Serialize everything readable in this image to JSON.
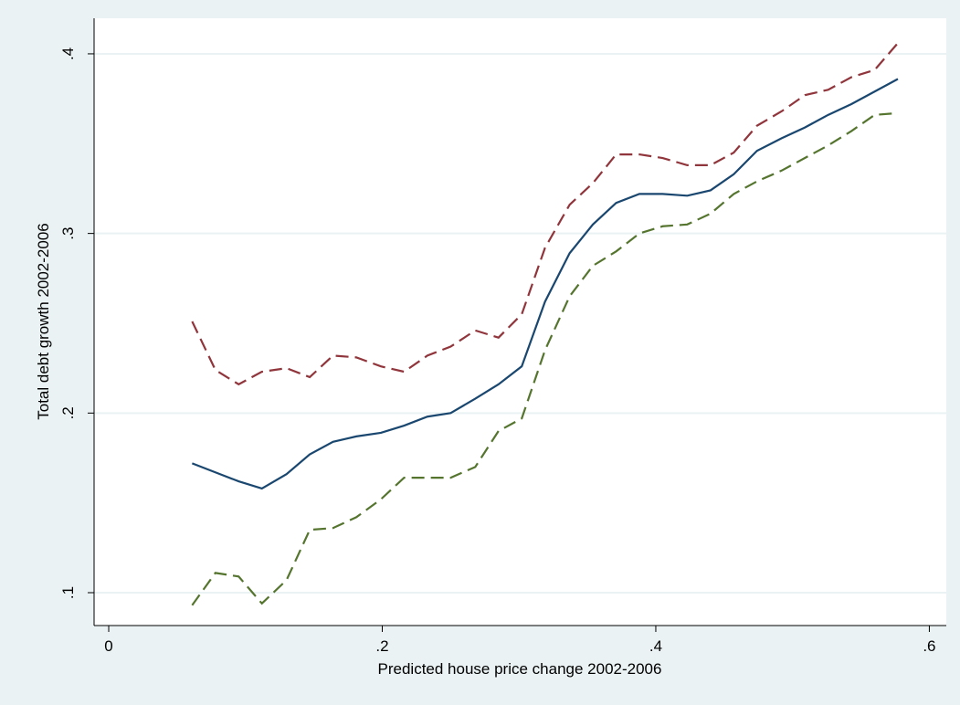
{
  "chart_data": {
    "type": "line",
    "x_label": "Predicted house price change 2002-2006",
    "y_label": "Total debt growth 2002-2006",
    "x": [
      0.061,
      0.078,
      0.095,
      0.112,
      0.13,
      0.147,
      0.164,
      0.181,
      0.199,
      0.216,
      0.233,
      0.25,
      0.268,
      0.285,
      0.302,
      0.319,
      0.337,
      0.354,
      0.371,
      0.388,
      0.405,
      0.423,
      0.44,
      0.457,
      0.474,
      0.492,
      0.509,
      0.526,
      0.543,
      0.56,
      0.577
    ],
    "series": [
      {
        "color": "#90353b",
        "dashed": true,
        "values": [
          0.251,
          0.224,
          0.216,
          0.223,
          0.225,
          0.22,
          0.232,
          0.231,
          0.226,
          0.223,
          0.232,
          0.237,
          0.246,
          0.242,
          0.255,
          0.292,
          0.316,
          0.328,
          0.344,
          0.344,
          0.342,
          0.338,
          0.338,
          0.345,
          0.36,
          0.368,
          0.377,
          0.38,
          0.387,
          0.391,
          0.406
        ]
      },
      {
        "color": "#1a476f",
        "dashed": false,
        "values": [
          0.172,
          0.167,
          0.162,
          0.158,
          0.166,
          0.177,
          0.184,
          0.187,
          0.189,
          0.193,
          0.198,
          0.2,
          0.208,
          0.216,
          0.226,
          0.262,
          0.289,
          0.305,
          0.317,
          0.322,
          0.322,
          0.321,
          0.324,
          0.333,
          0.346,
          0.353,
          0.359,
          0.366,
          0.372,
          0.379,
          0.386
        ]
      },
      {
        "color": "#55752f",
        "dashed": true,
        "values": [
          0.093,
          0.111,
          0.109,
          0.094,
          0.107,
          0.135,
          0.136,
          0.142,
          0.152,
          0.164,
          0.164,
          0.164,
          0.17,
          0.19,
          0.197,
          0.235,
          0.265,
          0.282,
          0.29,
          0.3,
          0.304,
          0.305,
          0.311,
          0.322,
          0.329,
          0.335,
          0.342,
          0.349,
          0.357,
          0.366,
          0.367
        ]
      }
    ],
    "xlim": [
      -0.0107,
      0.6124
    ],
    "ylim": [
      0.0817,
      0.4198
    ],
    "xticks": [
      0,
      {
        "value": 0.2,
        "label": ".2"
      },
      {
        "value": 0.4,
        "label": ".4"
      },
      {
        "value": 0.6,
        "label": ".6"
      }
    ],
    "yticks": [
      {
        "value": 0.1,
        "label": ".1"
      },
      {
        "value": 0.2,
        "label": ".2"
      },
      {
        "value": 0.3,
        "label": ".3"
      },
      {
        "value": 0.4,
        "label": ".4"
      }
    ],
    "grid": true
  }
}
